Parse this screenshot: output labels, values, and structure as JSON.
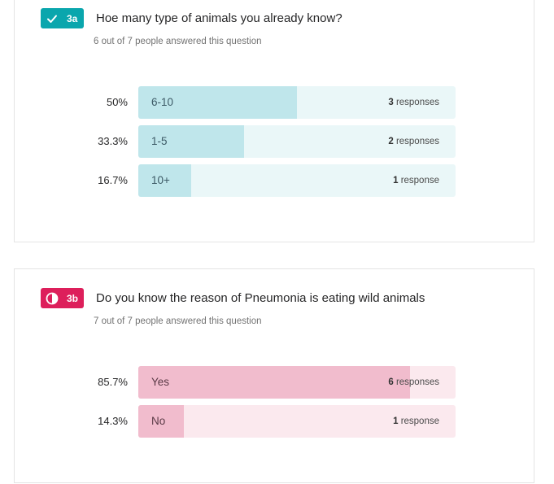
{
  "questions": [
    {
      "badge": "3a",
      "badge_icon": "check-icon",
      "badge_color": "#0aa6ad",
      "title": "Hoe many type of animals you already know?",
      "subtitle": "6 out of 7 people answered this question",
      "answers": [
        {
          "percent_label": "50%",
          "percent": 50,
          "label": "6-10",
          "count": "3",
          "unit": "responses"
        },
        {
          "percent_label": "33.3%",
          "percent": 33.3,
          "label": "1-5",
          "count": "2",
          "unit": "responses"
        },
        {
          "percent_label": "16.7%",
          "percent": 16.7,
          "label": "10+",
          "count": "1",
          "unit": "response"
        }
      ]
    },
    {
      "badge": "3b",
      "badge_icon": "half-circle-icon",
      "badge_color": "#dd1f5b",
      "title": "Do you know the reason of Pneumonia is eating wild animals",
      "subtitle": "7 out of 7 people answered this question",
      "answers": [
        {
          "percent_label": "85.7%",
          "percent": 85.7,
          "label": "Yes",
          "count": "6",
          "unit": "responses"
        },
        {
          "percent_label": "14.3%",
          "percent": 14.3,
          "label": "No",
          "count": "1",
          "unit": "response"
        }
      ]
    }
  ]
}
